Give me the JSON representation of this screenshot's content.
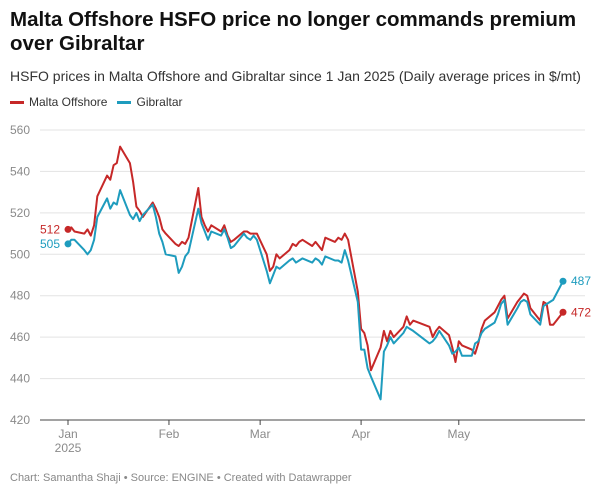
{
  "title": "Malta Offshore HSFO price no longer commands premium over Gibraltar",
  "subtitle": "HSFO prices in Malta Offshore and Gibraltar since 1 Jan 2025 (Daily average prices in $/mt)",
  "footer": "Chart: Samantha Shaji • Source: ENGINE • Created with Datawrapper",
  "chart_data": {
    "type": "line",
    "ylim": [
      420,
      560
    ],
    "yticks": [
      420,
      440,
      460,
      480,
      500,
      520,
      540,
      560
    ],
    "xticks": [
      {
        "date": "2025-01-01",
        "label": "Jan",
        "sublabel": "2025"
      },
      {
        "date": "2025-02-01",
        "label": "Feb",
        "sublabel": ""
      },
      {
        "date": "2025-03-01",
        "label": "Mar",
        "sublabel": ""
      },
      {
        "date": "2025-04-01",
        "label": "Apr",
        "sublabel": ""
      },
      {
        "date": "2025-05-01",
        "label": "May",
        "sublabel": ""
      }
    ],
    "grid": true,
    "legend_position": "top-left",
    "series": [
      {
        "name": "Malta Offshore",
        "color": "#c62828",
        "start_label": "512",
        "end_label": "472",
        "points": [
          [
            "2025-01-01",
            512
          ],
          [
            "2025-01-02",
            513
          ],
          [
            "2025-01-03",
            511
          ],
          [
            "2025-01-06",
            510
          ],
          [
            "2025-01-07",
            512
          ],
          [
            "2025-01-08",
            509
          ],
          [
            "2025-01-09",
            514
          ],
          [
            "2025-01-10",
            528
          ],
          [
            "2025-01-13",
            538
          ],
          [
            "2025-01-14",
            536
          ],
          [
            "2025-01-15",
            543
          ],
          [
            "2025-01-16",
            544
          ],
          [
            "2025-01-17",
            552
          ],
          [
            "2025-01-20",
            544
          ],
          [
            "2025-01-21",
            535
          ],
          [
            "2025-01-22",
            523
          ],
          [
            "2025-01-23",
            521
          ],
          [
            "2025-01-24",
            518
          ],
          [
            "2025-01-27",
            525
          ],
          [
            "2025-01-28",
            522
          ],
          [
            "2025-01-29",
            518
          ],
          [
            "2025-01-30",
            512
          ],
          [
            "2025-01-31",
            510
          ],
          [
            "2025-02-03",
            505
          ],
          [
            "2025-02-04",
            504
          ],
          [
            "2025-02-05",
            506
          ],
          [
            "2025-02-06",
            505
          ],
          [
            "2025-02-07",
            508
          ],
          [
            "2025-02-10",
            532
          ],
          [
            "2025-02-11",
            518
          ],
          [
            "2025-02-12",
            514
          ],
          [
            "2025-02-13",
            511
          ],
          [
            "2025-02-14",
            514
          ],
          [
            "2025-02-17",
            511
          ],
          [
            "2025-02-18",
            514
          ],
          [
            "2025-02-19",
            509
          ],
          [
            "2025-02-20",
            506
          ],
          [
            "2025-02-21",
            507
          ],
          [
            "2025-02-24",
            511
          ],
          [
            "2025-02-25",
            511
          ],
          [
            "2025-02-26",
            510
          ],
          [
            "2025-02-27",
            510
          ],
          [
            "2025-02-28",
            510
          ],
          [
            "2025-03-03",
            500
          ],
          [
            "2025-03-04",
            492
          ],
          [
            "2025-03-05",
            494
          ],
          [
            "2025-03-06",
            500
          ],
          [
            "2025-03-07",
            498
          ],
          [
            "2025-03-10",
            502
          ],
          [
            "2025-03-11",
            505
          ],
          [
            "2025-03-12",
            504
          ],
          [
            "2025-03-13",
            506
          ],
          [
            "2025-03-14",
            507
          ],
          [
            "2025-03-17",
            504
          ],
          [
            "2025-03-18",
            506
          ],
          [
            "2025-03-19",
            504
          ],
          [
            "2025-03-20",
            502
          ],
          [
            "2025-03-21",
            508
          ],
          [
            "2025-03-24",
            506
          ],
          [
            "2025-03-25",
            508
          ],
          [
            "2025-03-26",
            507
          ],
          [
            "2025-03-27",
            510
          ],
          [
            "2025-03-28",
            507
          ],
          [
            "2025-03-31",
            482
          ],
          [
            "2025-04-01",
            464
          ],
          [
            "2025-04-02",
            462
          ],
          [
            "2025-04-03",
            456
          ],
          [
            "2025-04-04",
            444
          ],
          [
            "2025-04-07",
            455
          ],
          [
            "2025-04-08",
            463
          ],
          [
            "2025-04-09",
            458
          ],
          [
            "2025-04-10",
            463
          ],
          [
            "2025-04-11",
            460
          ],
          [
            "2025-04-14",
            465
          ],
          [
            "2025-04-15",
            470
          ],
          [
            "2025-04-16",
            466
          ],
          [
            "2025-04-17",
            468
          ],
          [
            "2025-04-22",
            465
          ],
          [
            "2025-04-23",
            460
          ],
          [
            "2025-04-24",
            463
          ],
          [
            "2025-04-25",
            465
          ],
          [
            "2025-04-28",
            461
          ],
          [
            "2025-04-29",
            455
          ],
          [
            "2025-04-30",
            448
          ],
          [
            "2025-05-01",
            458
          ],
          [
            "2025-05-02",
            456
          ],
          [
            "2025-05-05",
            454
          ],
          [
            "2025-05-06",
            452
          ],
          [
            "2025-05-07",
            457
          ],
          [
            "2025-05-08",
            464
          ],
          [
            "2025-05-09",
            468
          ],
          [
            "2025-05-12",
            472
          ],
          [
            "2025-05-13",
            475
          ],
          [
            "2025-05-14",
            478
          ],
          [
            "2025-05-15",
            480
          ],
          [
            "2025-05-16",
            469
          ],
          [
            "2025-05-19",
            477
          ],
          [
            "2025-05-20",
            479
          ],
          [
            "2025-05-21",
            481
          ],
          [
            "2025-05-22",
            480
          ],
          [
            "2025-05-23",
            474
          ],
          [
            "2025-05-26",
            468
          ],
          [
            "2025-05-27",
            477
          ],
          [
            "2025-05-28",
            476
          ],
          [
            "2025-05-29",
            466
          ],
          [
            "2025-05-30",
            466
          ],
          [
            "2025-06-02",
            472
          ]
        ]
      },
      {
        "name": "Gibraltar",
        "color": "#1e9cbe",
        "start_label": "505",
        "end_label": "487",
        "points": [
          [
            "2025-01-01",
            505
          ],
          [
            "2025-01-02",
            507
          ],
          [
            "2025-01-03",
            507
          ],
          [
            "2025-01-06",
            502
          ],
          [
            "2025-01-07",
            500
          ],
          [
            "2025-01-08",
            502
          ],
          [
            "2025-01-09",
            507
          ],
          [
            "2025-01-10",
            518
          ],
          [
            "2025-01-13",
            527
          ],
          [
            "2025-01-14",
            522
          ],
          [
            "2025-01-15",
            525
          ],
          [
            "2025-01-16",
            524
          ],
          [
            "2025-01-17",
            531
          ],
          [
            "2025-01-20",
            519
          ],
          [
            "2025-01-21",
            517
          ],
          [
            "2025-01-22",
            520
          ],
          [
            "2025-01-23",
            516
          ],
          [
            "2025-01-24",
            519
          ],
          [
            "2025-01-27",
            524
          ],
          [
            "2025-01-28",
            518
          ],
          [
            "2025-01-29",
            510
          ],
          [
            "2025-01-30",
            506
          ],
          [
            "2025-01-31",
            500
          ],
          [
            "2025-02-03",
            499
          ],
          [
            "2025-02-04",
            491
          ],
          [
            "2025-02-05",
            494
          ],
          [
            "2025-02-06",
            499
          ],
          [
            "2025-02-07",
            501
          ],
          [
            "2025-02-10",
            522
          ],
          [
            "2025-02-11",
            515
          ],
          [
            "2025-02-12",
            511
          ],
          [
            "2025-02-13",
            507
          ],
          [
            "2025-02-14",
            511
          ],
          [
            "2025-02-17",
            509
          ],
          [
            "2025-02-18",
            512
          ],
          [
            "2025-02-19",
            508
          ],
          [
            "2025-02-20",
            503
          ],
          [
            "2025-02-21",
            504
          ],
          [
            "2025-02-24",
            510
          ],
          [
            "2025-02-25",
            508
          ],
          [
            "2025-02-26",
            507
          ],
          [
            "2025-02-27",
            509
          ],
          [
            "2025-02-28",
            507
          ],
          [
            "2025-03-03",
            492
          ],
          [
            "2025-03-04",
            486
          ],
          [
            "2025-03-05",
            490
          ],
          [
            "2025-03-06",
            494
          ],
          [
            "2025-03-07",
            493
          ],
          [
            "2025-03-10",
            497
          ],
          [
            "2025-03-11",
            498
          ],
          [
            "2025-03-12",
            496
          ],
          [
            "2025-03-13",
            497
          ],
          [
            "2025-03-14",
            498
          ],
          [
            "2025-03-17",
            496
          ],
          [
            "2025-03-18",
            498
          ],
          [
            "2025-03-19",
            497
          ],
          [
            "2025-03-20",
            495
          ],
          [
            "2025-03-21",
            499
          ],
          [
            "2025-03-24",
            497
          ],
          [
            "2025-03-25",
            497
          ],
          [
            "2025-03-26",
            496
          ],
          [
            "2025-03-27",
            502
          ],
          [
            "2025-03-28",
            497
          ],
          [
            "2025-03-31",
            477
          ],
          [
            "2025-04-01",
            454
          ],
          [
            "2025-04-02",
            454
          ],
          [
            "2025-04-03",
            445
          ],
          [
            "2025-04-04",
            441
          ],
          [
            "2025-04-07",
            430
          ],
          [
            "2025-04-08",
            453
          ],
          [
            "2025-04-09",
            456
          ],
          [
            "2025-04-10",
            460
          ],
          [
            "2025-04-11",
            457
          ],
          [
            "2025-04-14",
            462
          ],
          [
            "2025-04-15",
            465
          ],
          [
            "2025-04-16",
            464
          ],
          [
            "2025-04-17",
            463
          ],
          [
            "2025-04-22",
            457
          ],
          [
            "2025-04-23",
            458
          ],
          [
            "2025-04-24",
            460
          ],
          [
            "2025-04-25",
            463
          ],
          [
            "2025-04-28",
            456
          ],
          [
            "2025-04-29",
            452
          ],
          [
            "2025-04-30",
            453
          ],
          [
            "2025-05-01",
            455
          ],
          [
            "2025-05-02",
            451
          ],
          [
            "2025-05-05",
            451
          ],
          [
            "2025-05-06",
            457
          ],
          [
            "2025-05-07",
            458
          ],
          [
            "2025-05-08",
            462
          ],
          [
            "2025-05-09",
            464
          ],
          [
            "2025-05-12",
            467
          ],
          [
            "2025-05-13",
            471
          ],
          [
            "2025-05-14",
            476
          ],
          [
            "2025-05-15",
            478
          ],
          [
            "2025-05-16",
            466
          ],
          [
            "2025-05-19",
            474
          ],
          [
            "2025-05-20",
            477
          ],
          [
            "2025-05-21",
            478
          ],
          [
            "2025-05-22",
            477
          ],
          [
            "2025-05-23",
            471
          ],
          [
            "2025-05-26",
            466
          ],
          [
            "2025-05-27",
            475
          ],
          [
            "2025-05-28",
            476
          ],
          [
            "2025-05-29",
            477
          ],
          [
            "2025-05-30",
            478
          ],
          [
            "2025-06-02",
            487
          ]
        ]
      }
    ]
  }
}
